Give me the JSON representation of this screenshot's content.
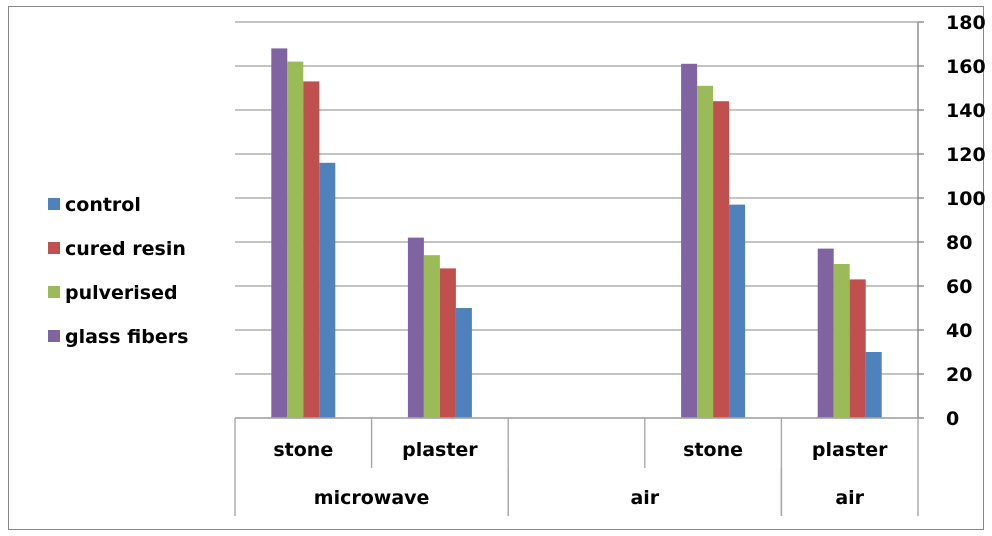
{
  "chart_data": {
    "type": "bar",
    "categories": [
      {
        "inner": "stone",
        "outer": "microwave"
      },
      {
        "inner": "plaster",
        "outer": "microwave"
      },
      {
        "inner": "",
        "outer": "air"
      },
      {
        "inner": "stone",
        "outer": "air"
      },
      {
        "inner": "plaster",
        "outer": "air"
      }
    ],
    "outer_groups": [
      {
        "label": "microwave",
        "span": [
          0,
          1
        ]
      },
      {
        "label": "air",
        "span": [
          2,
          3
        ]
      },
      {
        "label": "air",
        "span": [
          4,
          4
        ]
      }
    ],
    "series": [
      {
        "name": "control",
        "color": "#4F81BD",
        "values": [
          116,
          50,
          null,
          97,
          30
        ]
      },
      {
        "name": "cured resin",
        "color": "#C0504D",
        "values": [
          153,
          68,
          null,
          144,
          63
        ]
      },
      {
        "name": "pulverised",
        "color": "#9BBB59",
        "values": [
          162,
          74,
          null,
          151,
          70
        ]
      },
      {
        "name": "glass fibers",
        "color": "#8064A2",
        "values": [
          168,
          82,
          null,
          161,
          77
        ]
      }
    ],
    "draw_order": [
      3,
      2,
      1,
      0
    ],
    "yticks": [
      "0",
      "20",
      "40",
      "60",
      "80",
      "100",
      "120",
      "140",
      "160",
      "180"
    ],
    "ylim": [
      0,
      180
    ],
    "grid": true,
    "legend_position": "left"
  }
}
